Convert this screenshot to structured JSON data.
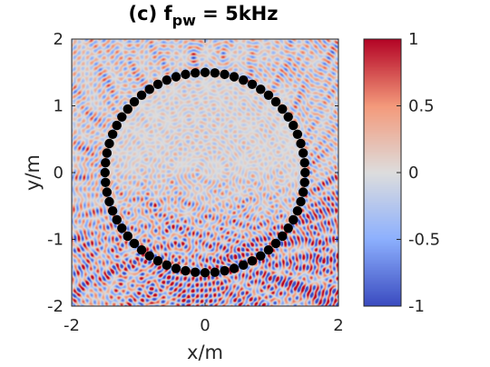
{
  "chart_data": {
    "type": "heatmap",
    "title": "(c) f",
    "title_subscript": "pw",
    "title_suffix": " = 5kHz",
    "xlabel": "x/m",
    "ylabel": "y/m",
    "xlim": [
      -2,
      2
    ],
    "ylim": [
      -2,
      2
    ],
    "x_ticks": [
      "-2",
      "0",
      "2"
    ],
    "x_tick_values": [
      -2,
      0,
      2
    ],
    "y_ticks": [
      "-2",
      "-1",
      "0",
      "1",
      "2"
    ],
    "y_tick_values": [
      -2,
      -1,
      0,
      1,
      2
    ],
    "colorbar": {
      "colormap": "coolwarm",
      "limits": [
        -1,
        1
      ],
      "ticks": [
        "-1",
        "-0.5",
        "0",
        "0.5",
        "1"
      ],
      "tick_values": [
        -1,
        -0.5,
        0,
        0.5,
        1
      ],
      "colors": [
        "#3b4cc0",
        "#dddddd",
        "#b40426"
      ]
    },
    "loudspeaker_array": {
      "shape": "circle",
      "center": [
        0,
        0
      ],
      "radius": 1.5,
      "count": 64,
      "marker_color": "#000000"
    },
    "grid": false
  }
}
